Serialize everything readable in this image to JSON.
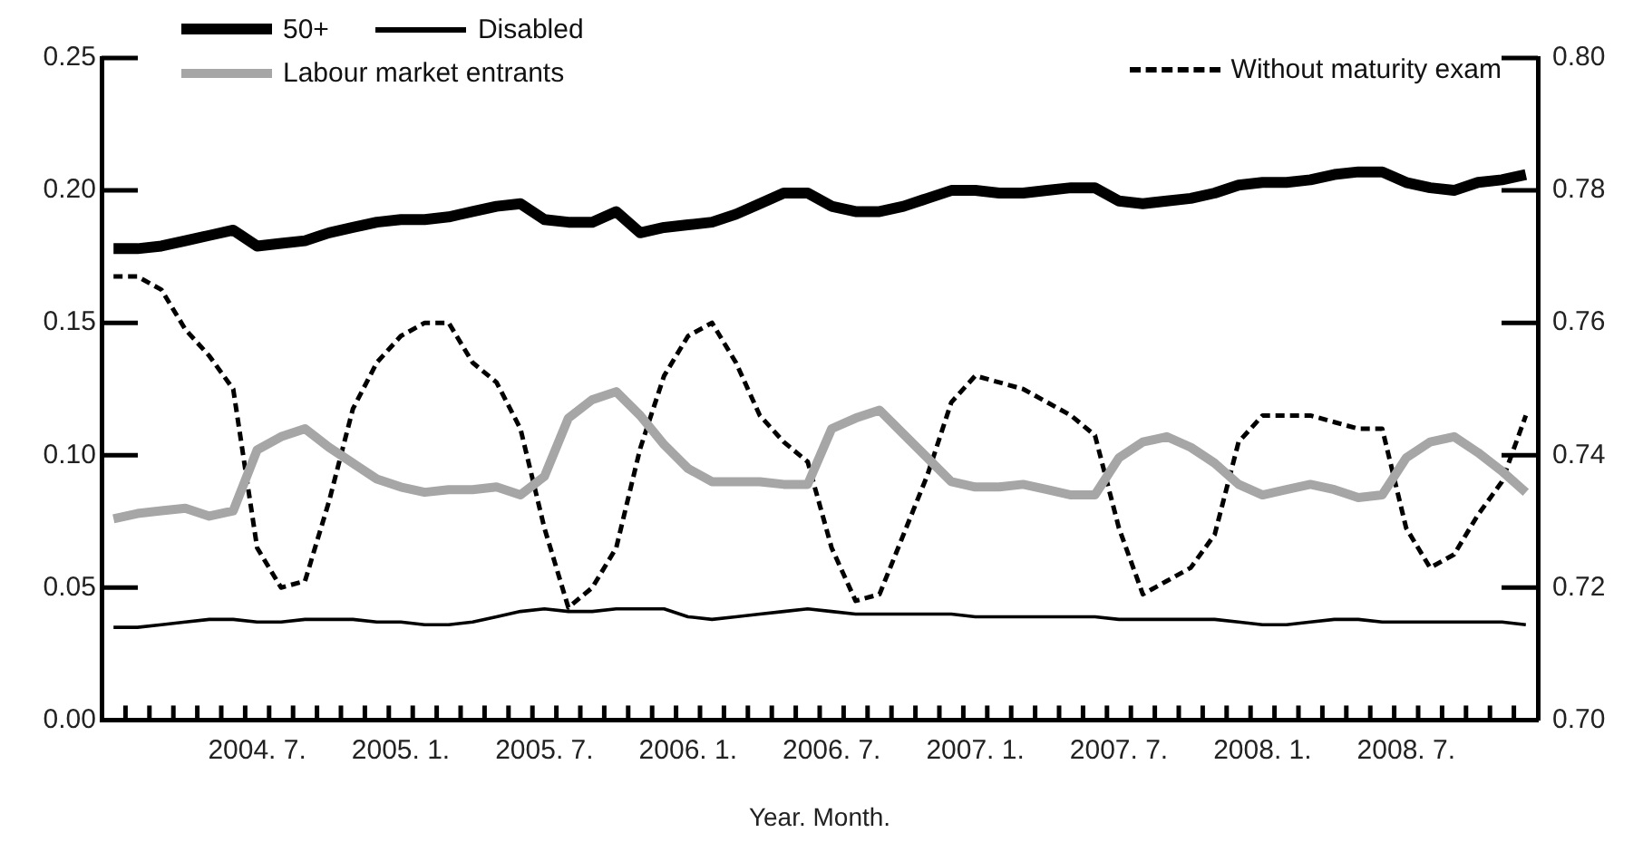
{
  "chart_data": {
    "type": "line",
    "xlabel": "Year. Month.",
    "categories": [
      null,
      null,
      null,
      null,
      null,
      null,
      "2004. 7.",
      null,
      null,
      null,
      null,
      null,
      "2005. 1.",
      null,
      null,
      null,
      null,
      null,
      "2005. 7.",
      null,
      null,
      null,
      null,
      null,
      "2006. 1.",
      null,
      null,
      null,
      null,
      null,
      "2006. 7.",
      null,
      null,
      null,
      null,
      null,
      "2007. 1.",
      null,
      null,
      null,
      null,
      null,
      "2007. 7.",
      null,
      null,
      null,
      null,
      null,
      "2008. 1.",
      null,
      null,
      null,
      null,
      null,
      "2008. 7.",
      null,
      null,
      null,
      null,
      null
    ],
    "ylim": [
      0,
      0.25
    ],
    "yticks": [
      {
        "value": 0,
        "label": "0.00"
      },
      0.05,
      {
        "value": 0.1,
        "label": "0.10"
      },
      0.15,
      {
        "value": 0.2,
        "label": "0.20"
      },
      0.25
    ],
    "y2lim": [
      0.7,
      0.8
    ],
    "y2ticks": [
      {
        "value": 0.7,
        "label": "0.70"
      },
      0.72,
      0.74,
      0.76,
      0.78,
      {
        "value": 0.8,
        "label": "0.80"
      }
    ],
    "legend": "top",
    "grid": false,
    "marker": "none",
    "series": [
      {
        "name": "50+",
        "color": "#000000",
        "values": [
          0.178,
          0.178,
          0.179,
          0.181,
          0.183,
          0.185,
          0.179,
          0.18,
          0.181,
          0.184,
          0.186,
          0.188,
          0.189,
          0.189,
          0.19,
          0.192,
          0.194,
          0.195,
          0.189,
          0.188,
          0.188,
          0.192,
          0.184,
          0.186,
          0.187,
          0.188,
          0.191,
          0.195,
          0.199,
          0.199,
          0.194,
          0.192,
          0.192,
          0.194,
          0.197,
          0.2,
          0.2,
          0.199,
          0.199,
          0.2,
          0.201,
          0.201,
          0.196,
          0.195,
          0.196,
          0.197,
          0.199,
          0.202,
          0.203,
          0.203,
          0.204,
          0.206,
          0.207,
          0.207,
          0.203,
          0.201,
          0.2,
          0.203,
          0.204,
          0.206
        ]
      },
      {
        "name": "Disabled",
        "color": "#000000",
        "values": [
          0.035,
          0.035,
          0.036,
          0.037,
          0.038,
          0.038,
          0.037,
          0.037,
          0.038,
          0.038,
          0.038,
          0.037,
          0.037,
          0.036,
          0.036,
          0.037,
          0.039,
          0.041,
          0.042,
          0.041,
          0.041,
          0.042,
          0.042,
          0.042,
          0.039,
          0.038,
          0.039,
          0.04,
          0.041,
          0.042,
          0.041,
          0.04,
          0.04,
          0.04,
          0.04,
          0.04,
          0.039,
          0.039,
          0.039,
          0.039,
          0.039,
          0.039,
          0.038,
          0.038,
          0.038,
          0.038,
          0.038,
          0.037,
          0.036,
          0.036,
          0.037,
          0.038,
          0.038,
          0.037,
          0.037,
          0.037,
          0.037,
          0.037,
          0.037,
          0.036
        ]
      },
      {
        "name": "Labour market entrants",
        "color": "#a6a6a6",
        "values": [
          0.076,
          0.078,
          0.079,
          0.08,
          0.077,
          0.079,
          0.102,
          0.107,
          0.11,
          0.103,
          0.097,
          0.091,
          0.088,
          0.086,
          0.087,
          0.087,
          0.088,
          0.085,
          0.092,
          0.114,
          0.121,
          0.124,
          0.115,
          0.104,
          0.095,
          0.09,
          0.09,
          0.09,
          0.089,
          0.089,
          0.11,
          0.114,
          0.117,
          0.108,
          0.099,
          0.09,
          0.088,
          0.088,
          0.089,
          0.087,
          0.085,
          0.085,
          0.099,
          0.105,
          0.107,
          0.103,
          0.097,
          0.089,
          0.085,
          0.087,
          0.089,
          0.087,
          0.084,
          0.085,
          0.099,
          0.105,
          0.107,
          0.101,
          0.094,
          0.086
        ]
      },
      {
        "name": "Without maturity exam",
        "color": "#000000",
        "axis": "y2",
        "line_style": "dashed",
        "values": [
          0.767,
          0.767,
          0.765,
          0.759,
          0.755,
          0.75,
          0.726,
          0.72,
          0.721,
          0.733,
          0.747,
          0.754,
          0.758,
          0.76,
          0.76,
          0.754,
          0.751,
          0.744,
          0.729,
          0.717,
          0.72,
          0.726,
          0.741,
          0.752,
          0.758,
          0.76,
          0.754,
          0.746,
          0.742,
          0.739,
          0.726,
          0.718,
          0.719,
          0.728,
          0.737,
          0.748,
          0.752,
          0.751,
          0.75,
          0.748,
          0.746,
          0.743,
          0.729,
          0.719,
          0.721,
          0.723,
          0.728,
          0.742,
          0.746,
          0.746,
          0.746,
          0.745,
          0.744,
          0.744,
          0.729,
          0.723,
          0.725,
          0.731,
          0.736,
          0.746
        ]
      }
    ]
  }
}
